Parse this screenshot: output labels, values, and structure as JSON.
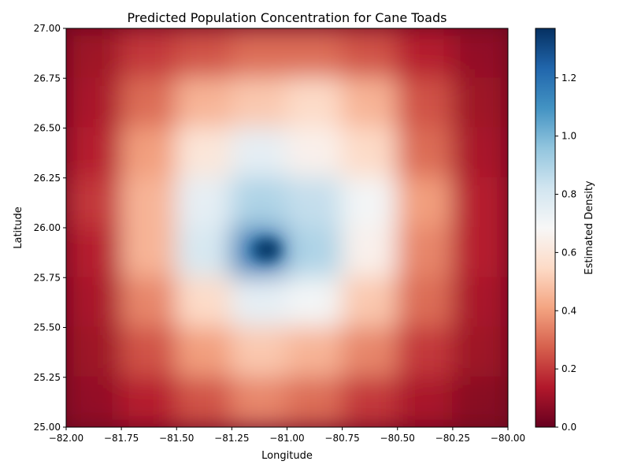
{
  "chart_data": {
    "type": "heatmap",
    "title": "Predicted Population Concentration for Cane Toads",
    "xlabel": "Longitude",
    "ylabel": "Latitude",
    "xlim": [
      -82.0,
      -80.0
    ],
    "ylim": [
      25.0,
      27.0
    ],
    "x_ticks": [
      -82.0,
      -81.75,
      -81.5,
      -81.25,
      -81.0,
      -80.75,
      -80.5,
      -80.25,
      -80.0
    ],
    "x_tick_labels": [
      "−82.00",
      "−81.75",
      "−81.50",
      "−81.25",
      "−81.00",
      "−80.75",
      "−80.50",
      "−80.25",
      "−80.00"
    ],
    "y_ticks": [
      25.0,
      25.25,
      25.5,
      25.75,
      26.0,
      26.25,
      26.5,
      26.75,
      27.0
    ],
    "y_tick_labels": [
      "25.00",
      "25.25",
      "25.50",
      "25.75",
      "26.00",
      "26.25",
      "26.50",
      "26.75",
      "27.00"
    ],
    "colorbar": {
      "label": "Estimated Density",
      "range": [
        0.0,
        1.37
      ],
      "ticks": [
        0.0,
        0.2,
        0.4,
        0.6,
        0.8,
        1.0,
        1.2
      ],
      "tick_labels": [
        "0.0",
        "0.2",
        "0.4",
        "0.6",
        "0.8",
        "1.0",
        "1.2"
      ],
      "colormap": "RdBu"
    },
    "density_grid": {
      "x_centers": [
        -81.875,
        -81.625,
        -81.375,
        -81.125,
        -80.875,
        -80.625,
        -80.375,
        -80.125
      ],
      "y_centers": [
        26.875,
        26.625,
        26.375,
        26.125,
        25.875,
        25.625,
        25.375,
        25.125
      ],
      "values": [
        [
          0.1,
          0.2,
          0.25,
          0.3,
          0.3,
          0.25,
          0.15,
          0.08
        ],
        [
          0.12,
          0.3,
          0.45,
          0.5,
          0.55,
          0.45,
          0.25,
          0.1
        ],
        [
          0.15,
          0.4,
          0.6,
          0.75,
          0.65,
          0.55,
          0.3,
          0.12
        ],
        [
          0.2,
          0.45,
          0.75,
          0.9,
          0.85,
          0.7,
          0.4,
          0.15
        ],
        [
          0.15,
          0.45,
          0.8,
          1.15,
          0.9,
          0.65,
          0.35,
          0.15
        ],
        [
          0.12,
          0.35,
          0.55,
          0.75,
          0.7,
          0.5,
          0.3,
          0.12
        ],
        [
          0.1,
          0.25,
          0.4,
          0.5,
          0.45,
          0.35,
          0.2,
          0.1
        ],
        [
          0.08,
          0.15,
          0.25,
          0.35,
          0.3,
          0.2,
          0.12,
          0.06
        ]
      ]
    },
    "peak": {
      "longitude": -81.09,
      "latitude": 25.89,
      "value": 1.37
    },
    "grid": false
  }
}
